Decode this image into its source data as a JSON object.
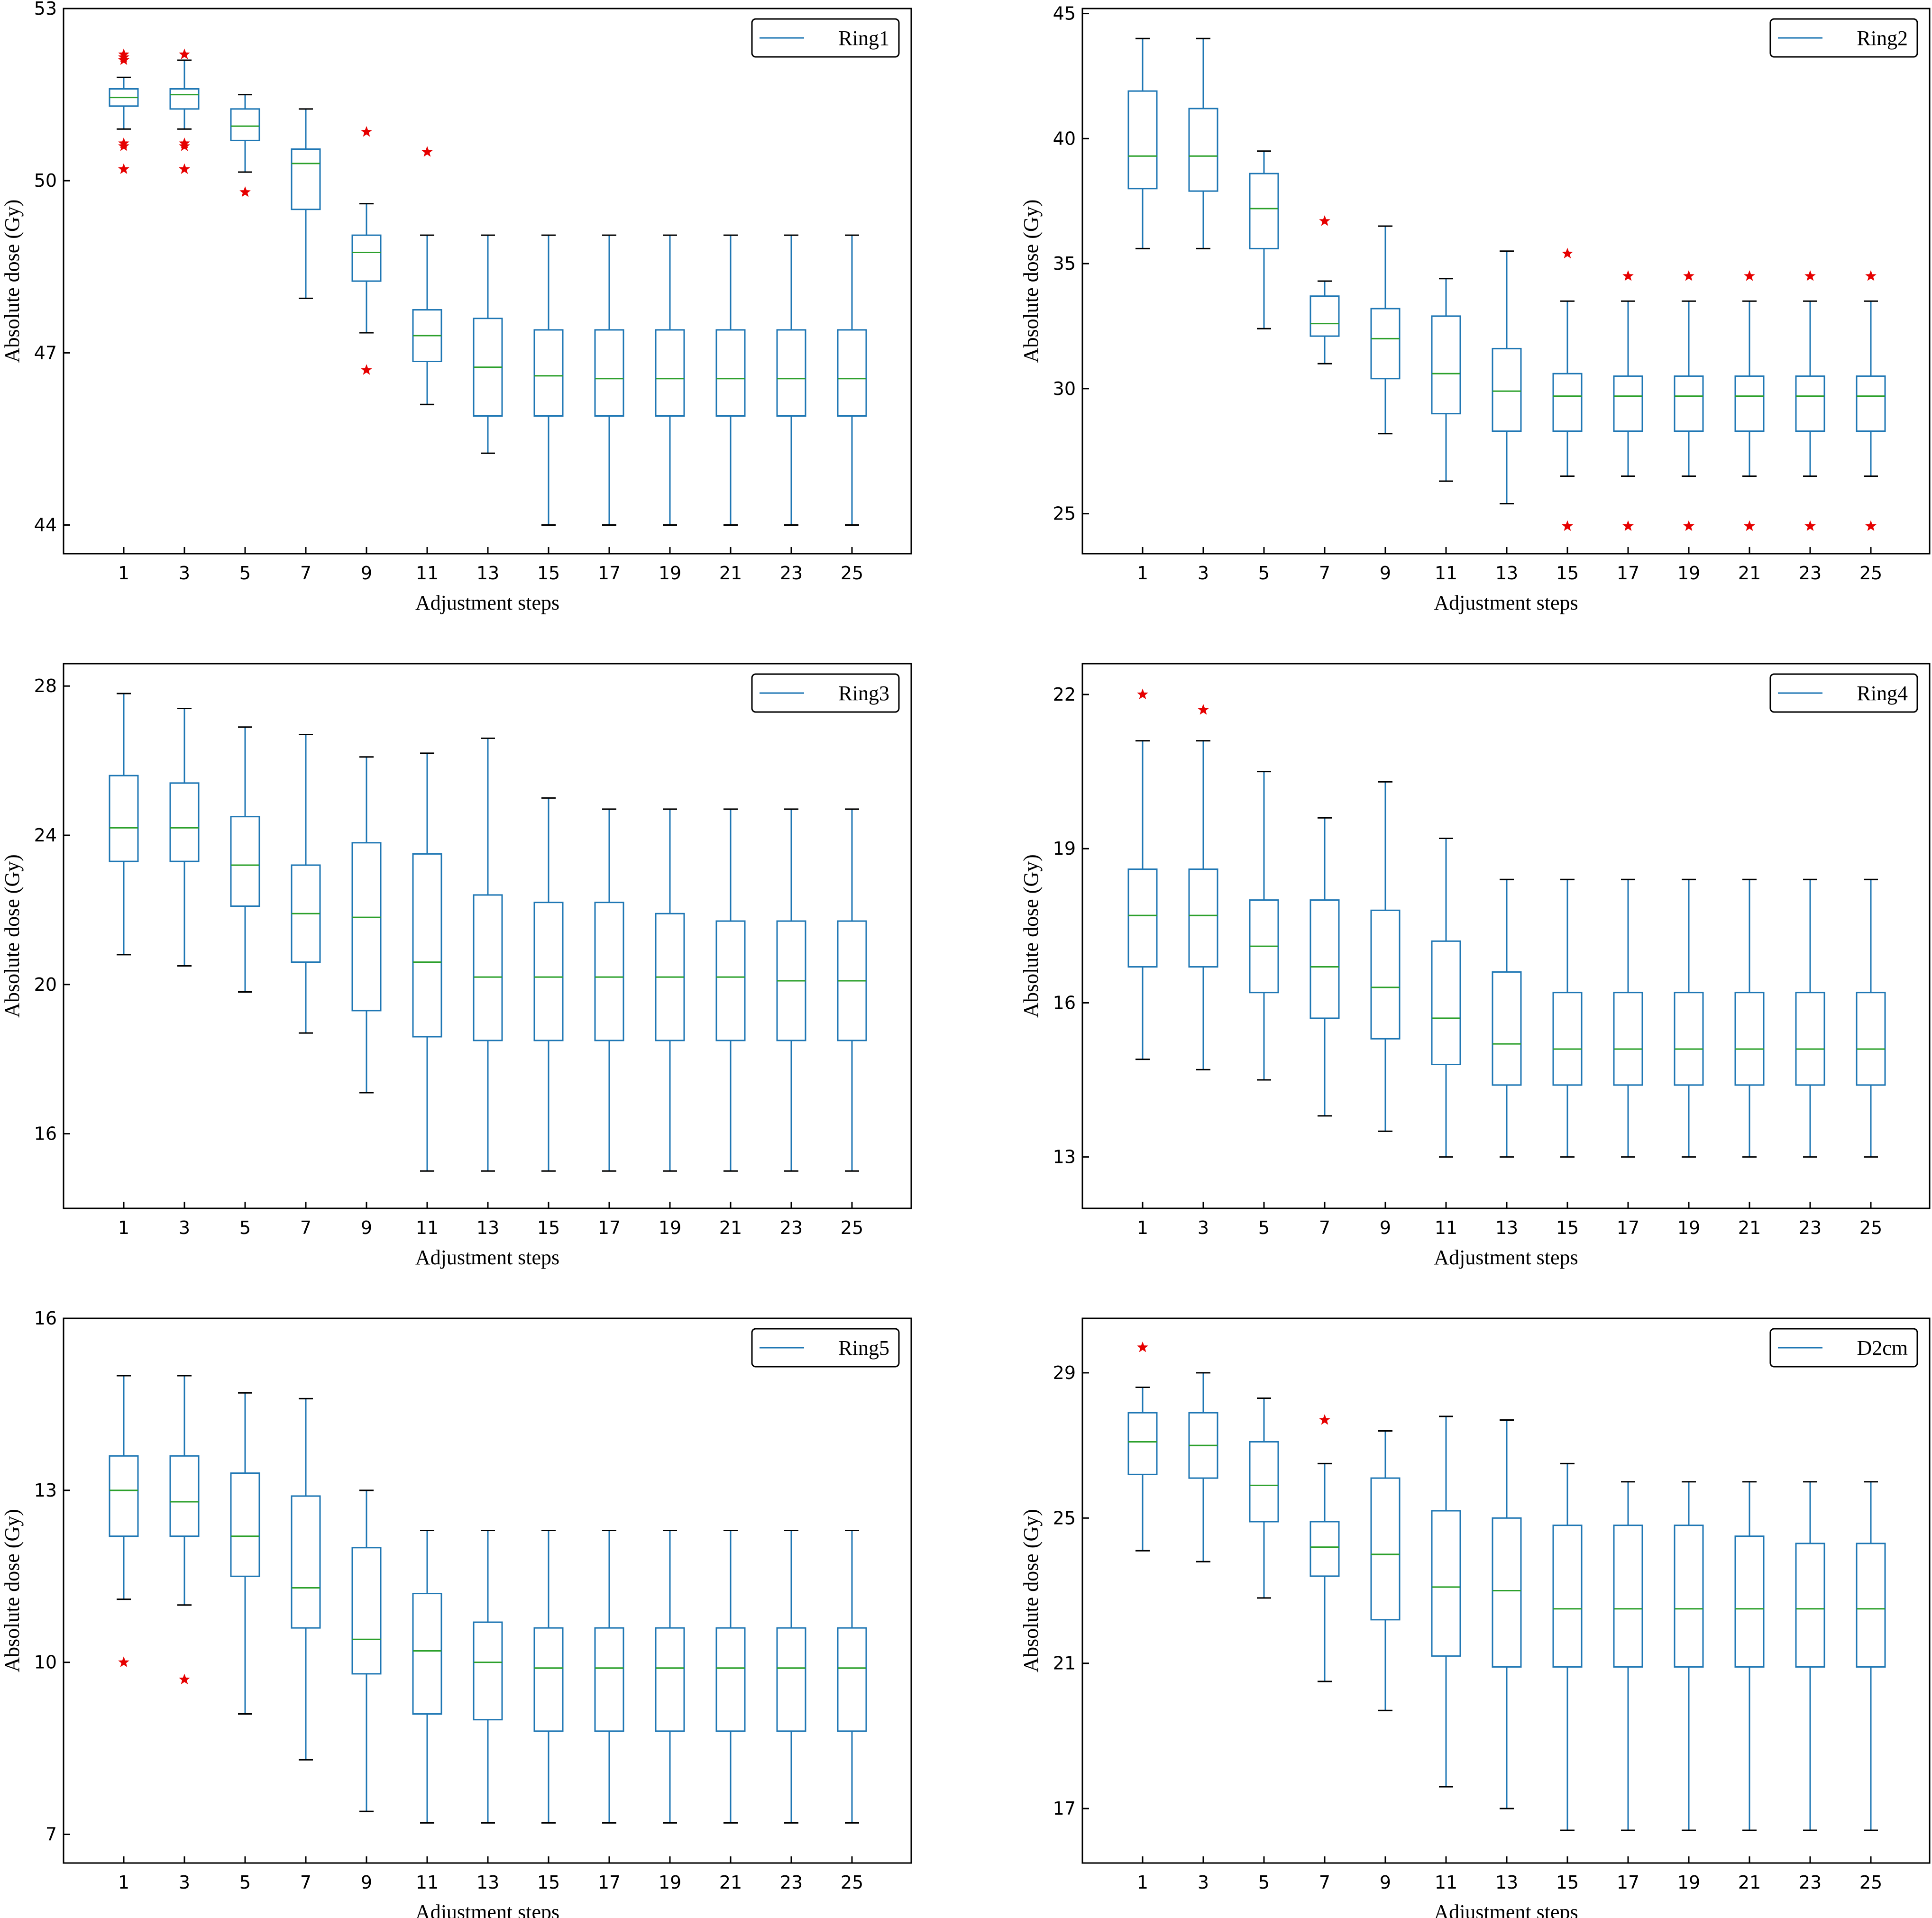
{
  "figure": {
    "colors": {
      "box": "#1f77b4",
      "median": "#2ca02c",
      "whisker_cap": "#000000",
      "outlier": "#e60000",
      "frame": "#000000"
    },
    "outlier_marker": "red star"
  },
  "chart_data": [
    {
      "type": "boxplot",
      "legend": "Ring1",
      "xlabel": "Adjustment steps",
      "ylabel": "Absolute dose (Gy)",
      "yticks": [
        44,
        47,
        50,
        53
      ],
      "ylim": [
        43.5,
        53
      ],
      "categories": [
        "1",
        "3",
        "5",
        "7",
        "9",
        "11",
        "13",
        "15",
        "17",
        "19",
        "21",
        "23",
        "25"
      ],
      "boxes": [
        {
          "step": "1",
          "whislo": 50.9,
          "q1": 51.3,
          "med": 51.45,
          "q3": 51.6,
          "whishi": 51.8,
          "outliers": [
            52.2,
            52.15,
            52.1,
            50.6,
            50.65,
            50.2
          ]
        },
        {
          "step": "3",
          "whislo": 50.9,
          "q1": 51.25,
          "med": 51.5,
          "q3": 51.6,
          "whishi": 52.1,
          "outliers": [
            52.2,
            50.6,
            50.65,
            50.2
          ]
        },
        {
          "step": "5",
          "whislo": 50.15,
          "q1": 50.7,
          "med": 50.95,
          "q3": 51.25,
          "whishi": 51.5,
          "outliers": [
            49.8
          ]
        },
        {
          "step": "7",
          "whislo": 47.95,
          "q1": 49.5,
          "med": 50.3,
          "q3": 50.55,
          "whishi": 51.25,
          "outliers": []
        },
        {
          "step": "9",
          "whislo": 47.35,
          "q1": 48.25,
          "med": 48.75,
          "q3": 49.05,
          "whishi": 49.6,
          "outliers": [
            50.85,
            46.7
          ]
        },
        {
          "step": "11",
          "whislo": 46.1,
          "q1": 46.85,
          "med": 47.3,
          "q3": 47.75,
          "whishi": 49.05,
          "outliers": [
            50.5
          ]
        },
        {
          "step": "13",
          "whislo": 45.25,
          "q1": 45.9,
          "med": 46.75,
          "q3": 47.6,
          "whishi": 49.05,
          "outliers": []
        },
        {
          "step": "15",
          "whislo": 44.0,
          "q1": 45.9,
          "med": 46.6,
          "q3": 47.4,
          "whishi": 49.05,
          "outliers": []
        },
        {
          "step": "17",
          "whislo": 44.0,
          "q1": 45.9,
          "med": 46.55,
          "q3": 47.4,
          "whishi": 49.05,
          "outliers": []
        },
        {
          "step": "19",
          "whislo": 44.0,
          "q1": 45.9,
          "med": 46.55,
          "q3": 47.4,
          "whishi": 49.05,
          "outliers": []
        },
        {
          "step": "21",
          "whislo": 44.0,
          "q1": 45.9,
          "med": 46.55,
          "q3": 47.4,
          "whishi": 49.05,
          "outliers": []
        },
        {
          "step": "23",
          "whislo": 44.0,
          "q1": 45.9,
          "med": 46.55,
          "q3": 47.4,
          "whishi": 49.05,
          "outliers": []
        },
        {
          "step": "25",
          "whislo": 44.0,
          "q1": 45.9,
          "med": 46.55,
          "q3": 47.4,
          "whishi": 49.05,
          "outliers": []
        }
      ]
    },
    {
      "type": "boxplot",
      "legend": "Ring2",
      "xlabel": "Adjustment steps",
      "ylabel": "Absolute dose (Gy)",
      "yticks": [
        25,
        30,
        35,
        40,
        45
      ],
      "ylim": [
        23.4,
        45.2
      ],
      "categories": [
        "1",
        "3",
        "5",
        "7",
        "9",
        "11",
        "13",
        "15",
        "17",
        "19",
        "21",
        "23",
        "25"
      ],
      "boxes": [
        {
          "step": "1",
          "whislo": 35.6,
          "q1": 38.0,
          "med": 39.3,
          "q3": 41.9,
          "whishi": 44.0,
          "outliers": []
        },
        {
          "step": "3",
          "whislo": 35.6,
          "q1": 37.9,
          "med": 39.3,
          "q3": 41.2,
          "whishi": 44.0,
          "outliers": []
        },
        {
          "step": "5",
          "whislo": 32.4,
          "q1": 35.6,
          "med": 37.2,
          "q3": 38.6,
          "whishi": 39.5,
          "outliers": []
        },
        {
          "step": "7",
          "whislo": 31.0,
          "q1": 32.1,
          "med": 32.6,
          "q3": 33.7,
          "whishi": 34.3,
          "outliers": [
            36.7
          ]
        },
        {
          "step": "9",
          "whislo": 28.2,
          "q1": 30.4,
          "med": 32.0,
          "q3": 33.2,
          "whishi": 36.5,
          "outliers": []
        },
        {
          "step": "11",
          "whislo": 26.3,
          "q1": 29.0,
          "med": 30.6,
          "q3": 32.9,
          "whishi": 34.4,
          "outliers": []
        },
        {
          "step": "13",
          "whislo": 25.4,
          "q1": 28.3,
          "med": 29.9,
          "q3": 31.6,
          "whishi": 35.5,
          "outliers": []
        },
        {
          "step": "15",
          "whislo": 26.5,
          "q1": 28.3,
          "med": 29.7,
          "q3": 30.6,
          "whishi": 33.5,
          "outliers": [
            35.4,
            24.5
          ]
        },
        {
          "step": "17",
          "whislo": 26.5,
          "q1": 28.3,
          "med": 29.7,
          "q3": 30.5,
          "whishi": 33.5,
          "outliers": [
            34.5,
            24.5
          ]
        },
        {
          "step": "19",
          "whislo": 26.5,
          "q1": 28.3,
          "med": 29.7,
          "q3": 30.5,
          "whishi": 33.5,
          "outliers": [
            34.5,
            24.5
          ]
        },
        {
          "step": "21",
          "whislo": 26.5,
          "q1": 28.3,
          "med": 29.7,
          "q3": 30.5,
          "whishi": 33.5,
          "outliers": [
            34.5,
            24.5
          ]
        },
        {
          "step": "23",
          "whislo": 26.5,
          "q1": 28.3,
          "med": 29.7,
          "q3": 30.5,
          "whishi": 33.5,
          "outliers": [
            34.5,
            24.5
          ]
        },
        {
          "step": "25",
          "whislo": 26.5,
          "q1": 28.3,
          "med": 29.7,
          "q3": 30.5,
          "whishi": 33.5,
          "outliers": [
            34.5,
            24.5
          ]
        }
      ]
    },
    {
      "type": "boxplot",
      "legend": "Ring3",
      "xlabel": "Adjustment steps",
      "ylabel": "Absolute dose (Gy)",
      "yticks": [
        16,
        20,
        24,
        28
      ],
      "ylim": [
        14.0,
        28.6
      ],
      "categories": [
        "1",
        "3",
        "5",
        "7",
        "9",
        "11",
        "13",
        "15",
        "17",
        "19",
        "21",
        "23",
        "25"
      ],
      "boxes": [
        {
          "step": "1",
          "whislo": 20.8,
          "q1": 23.3,
          "med": 24.2,
          "q3": 25.6,
          "whishi": 27.8,
          "outliers": []
        },
        {
          "step": "3",
          "whislo": 20.5,
          "q1": 23.3,
          "med": 24.2,
          "q3": 25.4,
          "whishi": 27.4,
          "outliers": []
        },
        {
          "step": "5",
          "whislo": 19.8,
          "q1": 22.1,
          "med": 23.2,
          "q3": 24.5,
          "whishi": 26.9,
          "outliers": []
        },
        {
          "step": "7",
          "whislo": 18.7,
          "q1": 20.6,
          "med": 21.9,
          "q3": 23.2,
          "whishi": 26.7,
          "outliers": []
        },
        {
          "step": "9",
          "whislo": 17.1,
          "q1": 19.3,
          "med": 21.8,
          "q3": 23.8,
          "whishi": 26.1,
          "outliers": []
        },
        {
          "step": "11",
          "whislo": 15.0,
          "q1": 18.6,
          "med": 20.6,
          "q3": 23.5,
          "whishi": 26.2,
          "outliers": []
        },
        {
          "step": "13",
          "whislo": 15.0,
          "q1": 18.5,
          "med": 20.2,
          "q3": 22.4,
          "whishi": 26.6,
          "outliers": []
        },
        {
          "step": "15",
          "whislo": 15.0,
          "q1": 18.5,
          "med": 20.2,
          "q3": 22.2,
          "whishi": 25.0,
          "outliers": []
        },
        {
          "step": "17",
          "whislo": 15.0,
          "q1": 18.5,
          "med": 20.2,
          "q3": 22.2,
          "whishi": 24.7,
          "outliers": []
        },
        {
          "step": "19",
          "whislo": 15.0,
          "q1": 18.5,
          "med": 20.2,
          "q3": 21.9,
          "whishi": 24.7,
          "outliers": []
        },
        {
          "step": "21",
          "whislo": 15.0,
          "q1": 18.5,
          "med": 20.2,
          "q3": 21.7,
          "whishi": 24.7,
          "outliers": []
        },
        {
          "step": "23",
          "whislo": 15.0,
          "q1": 18.5,
          "med": 20.1,
          "q3": 21.7,
          "whishi": 24.7,
          "outliers": []
        },
        {
          "step": "25",
          "whislo": 15.0,
          "q1": 18.5,
          "med": 20.1,
          "q3": 21.7,
          "whishi": 24.7,
          "outliers": []
        }
      ]
    },
    {
      "type": "boxplot",
      "legend": "Ring4",
      "xlabel": "Adjustment steps",
      "ylabel": "Absolute dose (Gy)",
      "yticks": [
        13,
        16,
        19,
        22
      ],
      "ylim": [
        12.0,
        22.6
      ],
      "categories": [
        "1",
        "3",
        "5",
        "7",
        "9",
        "11",
        "13",
        "15",
        "17",
        "19",
        "21",
        "23",
        "25"
      ],
      "boxes": [
        {
          "step": "1",
          "whislo": 14.9,
          "q1": 16.7,
          "med": 17.7,
          "q3": 18.6,
          "whishi": 21.1,
          "outliers": [
            22.0
          ]
        },
        {
          "step": "3",
          "whislo": 14.7,
          "q1": 16.7,
          "med": 17.7,
          "q3": 18.6,
          "whishi": 21.1,
          "outliers": [
            21.7
          ]
        },
        {
          "step": "5",
          "whislo": 14.5,
          "q1": 16.2,
          "med": 17.1,
          "q3": 18.0,
          "whishi": 20.5,
          "outliers": []
        },
        {
          "step": "7",
          "whislo": 13.8,
          "q1": 15.7,
          "med": 16.7,
          "q3": 18.0,
          "whishi": 19.6,
          "outliers": []
        },
        {
          "step": "9",
          "whislo": 13.5,
          "q1": 15.3,
          "med": 16.3,
          "q3": 17.8,
          "whishi": 20.3,
          "outliers": []
        },
        {
          "step": "11",
          "whislo": 13.0,
          "q1": 14.8,
          "med": 15.7,
          "q3": 17.2,
          "whishi": 19.2,
          "outliers": []
        },
        {
          "step": "13",
          "whislo": 13.0,
          "q1": 14.4,
          "med": 15.2,
          "q3": 16.6,
          "whishi": 18.4,
          "outliers": []
        },
        {
          "step": "15",
          "whislo": 13.0,
          "q1": 14.4,
          "med": 15.1,
          "q3": 16.2,
          "whishi": 18.4,
          "outliers": []
        },
        {
          "step": "17",
          "whislo": 13.0,
          "q1": 14.4,
          "med": 15.1,
          "q3": 16.2,
          "whishi": 18.4,
          "outliers": []
        },
        {
          "step": "19",
          "whislo": 13.0,
          "q1": 14.4,
          "med": 15.1,
          "q3": 16.2,
          "whishi": 18.4,
          "outliers": []
        },
        {
          "step": "21",
          "whislo": 13.0,
          "q1": 14.4,
          "med": 15.1,
          "q3": 16.2,
          "whishi": 18.4,
          "outliers": []
        },
        {
          "step": "23",
          "whislo": 13.0,
          "q1": 14.4,
          "med": 15.1,
          "q3": 16.2,
          "whishi": 18.4,
          "outliers": []
        },
        {
          "step": "25",
          "whislo": 13.0,
          "q1": 14.4,
          "med": 15.1,
          "q3": 16.2,
          "whishi": 18.4,
          "outliers": []
        }
      ]
    },
    {
      "type": "boxplot",
      "legend": "Ring5",
      "xlabel": "Adjustment steps",
      "ylabel": "Absolute dose (Gy)",
      "yticks": [
        7,
        10,
        13,
        16
      ],
      "ylim": [
        6.5,
        16.0
      ],
      "categories": [
        "1",
        "3",
        "5",
        "7",
        "9",
        "11",
        "13",
        "15",
        "17",
        "19",
        "21",
        "23",
        "25"
      ],
      "boxes": [
        {
          "step": "1",
          "whislo": 11.1,
          "q1": 12.2,
          "med": 13.0,
          "q3": 13.6,
          "whishi": 15.0,
          "outliers": [
            10.0
          ]
        },
        {
          "step": "3",
          "whislo": 11.0,
          "q1": 12.2,
          "med": 12.8,
          "q3": 13.6,
          "whishi": 15.0,
          "outliers": [
            9.7
          ]
        },
        {
          "step": "5",
          "whislo": 9.1,
          "q1": 11.5,
          "med": 12.2,
          "q3": 13.3,
          "whishi": 14.7,
          "outliers": []
        },
        {
          "step": "7",
          "whislo": 8.3,
          "q1": 10.6,
          "med": 11.3,
          "q3": 12.9,
          "whishi": 14.6,
          "outliers": []
        },
        {
          "step": "9",
          "whislo": 7.4,
          "q1": 9.8,
          "med": 10.4,
          "q3": 12.0,
          "whishi": 13.0,
          "outliers": []
        },
        {
          "step": "11",
          "whislo": 7.2,
          "q1": 9.1,
          "med": 10.2,
          "q3": 11.2,
          "whishi": 12.3,
          "outliers": []
        },
        {
          "step": "13",
          "whislo": 7.2,
          "q1": 9.0,
          "med": 10.0,
          "q3": 10.7,
          "whishi": 12.3,
          "outliers": []
        },
        {
          "step": "15",
          "whislo": 7.2,
          "q1": 8.8,
          "med": 9.9,
          "q3": 10.6,
          "whishi": 12.3,
          "outliers": []
        },
        {
          "step": "17",
          "whislo": 7.2,
          "q1": 8.8,
          "med": 9.9,
          "q3": 10.6,
          "whishi": 12.3,
          "outliers": []
        },
        {
          "step": "19",
          "whislo": 7.2,
          "q1": 8.8,
          "med": 9.9,
          "q3": 10.6,
          "whishi": 12.3,
          "outliers": []
        },
        {
          "step": "21",
          "whislo": 7.2,
          "q1": 8.8,
          "med": 9.9,
          "q3": 10.6,
          "whishi": 12.3,
          "outliers": []
        },
        {
          "step": "23",
          "whislo": 7.2,
          "q1": 8.8,
          "med": 9.9,
          "q3": 10.6,
          "whishi": 12.3,
          "outliers": []
        },
        {
          "step": "25",
          "whislo": 7.2,
          "q1": 8.8,
          "med": 9.9,
          "q3": 10.6,
          "whishi": 12.3,
          "outliers": []
        }
      ]
    },
    {
      "type": "boxplot",
      "legend": "D2cm",
      "xlabel": "Adjustment steps",
      "ylabel": "Absolute dose (Gy)",
      "yticks": [
        17,
        21,
        25,
        29
      ],
      "ylim": [
        15.5,
        30.5
      ],
      "categories": [
        "1",
        "3",
        "5",
        "7",
        "9",
        "11",
        "13",
        "15",
        "17",
        "19",
        "21",
        "23",
        "25"
      ],
      "boxes": [
        {
          "step": "1",
          "whislo": 24.1,
          "q1": 26.2,
          "med": 27.1,
          "q3": 27.9,
          "whishi": 28.6,
          "outliers": [
            29.7
          ]
        },
        {
          "step": "3",
          "whislo": 23.8,
          "q1": 26.1,
          "med": 27.0,
          "q3": 27.9,
          "whishi": 29.0,
          "outliers": []
        },
        {
          "step": "5",
          "whislo": 22.8,
          "q1": 24.9,
          "med": 25.9,
          "q3": 27.1,
          "whishi": 28.3,
          "outliers": []
        },
        {
          "step": "7",
          "whislo": 20.5,
          "q1": 23.4,
          "med": 24.2,
          "q3": 24.9,
          "whishi": 26.5,
          "outliers": [
            27.7
          ]
        },
        {
          "step": "9",
          "whislo": 19.7,
          "q1": 22.2,
          "med": 24.0,
          "q3": 26.1,
          "whishi": 27.4,
          "outliers": []
        },
        {
          "step": "11",
          "whislo": 17.6,
          "q1": 21.2,
          "med": 23.1,
          "q3": 25.2,
          "whishi": 27.8,
          "outliers": []
        },
        {
          "step": "13",
          "whislo": 17.0,
          "q1": 20.9,
          "med": 23.0,
          "q3": 25.0,
          "whishi": 27.7,
          "outliers": []
        },
        {
          "step": "15",
          "whislo": 16.4,
          "q1": 20.9,
          "med": 22.5,
          "q3": 24.8,
          "whishi": 26.5,
          "outliers": []
        },
        {
          "step": "17",
          "whislo": 16.4,
          "q1": 20.9,
          "med": 22.5,
          "q3": 24.8,
          "whishi": 26.0,
          "outliers": []
        },
        {
          "step": "19",
          "whislo": 16.4,
          "q1": 20.9,
          "med": 22.5,
          "q3": 24.8,
          "whishi": 26.0,
          "outliers": []
        },
        {
          "step": "21",
          "whislo": 16.4,
          "q1": 20.9,
          "med": 22.5,
          "q3": 24.5,
          "whishi": 26.0,
          "outliers": []
        },
        {
          "step": "23",
          "whislo": 16.4,
          "q1": 20.9,
          "med": 22.5,
          "q3": 24.3,
          "whishi": 26.0,
          "outliers": []
        },
        {
          "step": "25",
          "whislo": 16.4,
          "q1": 20.9,
          "med": 22.5,
          "q3": 24.3,
          "whishi": 26.0,
          "outliers": []
        }
      ]
    }
  ]
}
